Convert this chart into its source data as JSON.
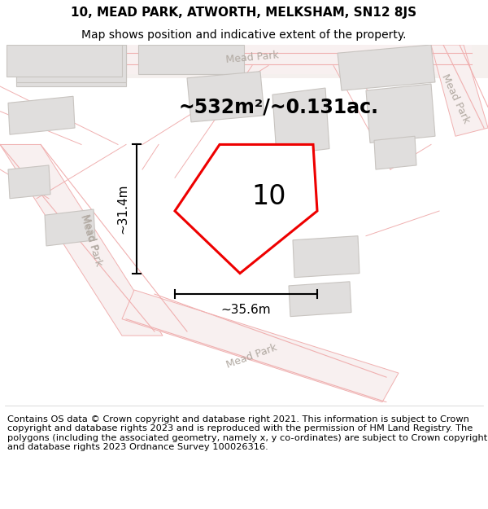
{
  "title_line1": "10, MEAD PARK, ATWORTH, MELKSHAM, SN12 8JS",
  "title_line2": "Map shows position and indicative extent of the property.",
  "area_label": "~532m²/~0.131ac.",
  "plot_number": "10",
  "width_label": "~35.6m",
  "height_label": "~31.4m",
  "footer_text": "Contains OS data © Crown copyright and database right 2021. This information is subject to Crown copyright and database rights 2023 and is reproduced with the permission of HM Land Registry. The polygons (including the associated geometry, namely x, y co-ordinates) are subject to Crown copyright and database rights 2023 Ordnance Survey 100026316.",
  "map_bg": "#f7f5f2",
  "road_line_color": "#f0b0b0",
  "road_fill_color": "#f8f0f0",
  "building_fill": "#e0dedd",
  "building_edge": "#c8c4c0",
  "plot_border_color": "#ee0000",
  "road_label_color": "#b0a8a0",
  "title_fontsize": 11,
  "subtitle_fontsize": 10,
  "area_fontsize": 17,
  "footer_fontsize": 8.2,
  "plot_number_fontsize": 24,
  "road_label_fontsize": 9,
  "dim_fontsize": 11
}
